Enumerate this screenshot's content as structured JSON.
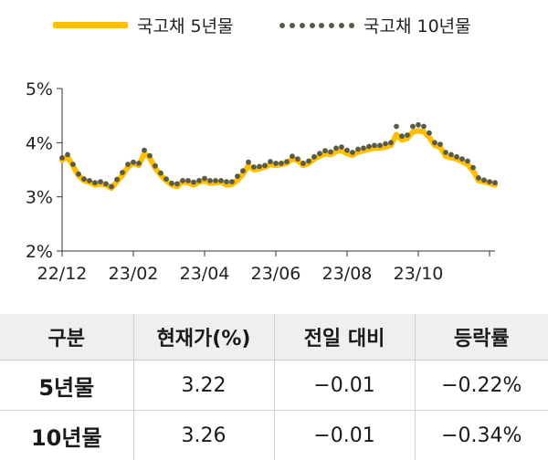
{
  "chart_data": {
    "type": "line",
    "x_ticks": [
      "22/12",
      "23/02",
      "23/04",
      "23/06",
      "23/08",
      "23/10"
    ],
    "y_ticks": [
      "2%",
      "3%",
      "4%",
      "5%"
    ],
    "ylim": [
      2,
      5
    ],
    "unit": "%",
    "legend": "top",
    "series": [
      {
        "name": "국고채 5년물",
        "style": "solid",
        "color": "#FFBF00",
        "values": [
          3.68,
          3.74,
          3.57,
          3.39,
          3.3,
          3.27,
          3.22,
          3.24,
          3.22,
          3.16,
          3.28,
          3.4,
          3.55,
          3.62,
          3.58,
          3.8,
          3.72,
          3.53,
          3.4,
          3.3,
          3.22,
          3.19,
          3.28,
          3.26,
          3.22,
          3.27,
          3.3,
          3.25,
          3.26,
          3.27,
          3.22,
          3.23,
          3.31,
          3.42,
          3.58,
          3.5,
          3.52,
          3.55,
          3.6,
          3.58,
          3.6,
          3.62,
          3.7,
          3.67,
          3.58,
          3.62,
          3.7,
          3.75,
          3.8,
          3.78,
          3.84,
          3.85,
          3.8,
          3.77,
          3.83,
          3.85,
          3.88,
          3.9,
          3.9,
          3.92,
          3.95,
          4.15,
          4.05,
          4.08,
          4.2,
          4.22,
          4.2,
          4.1,
          3.95,
          3.92,
          3.75,
          3.72,
          3.7,
          3.65,
          3.6,
          3.48,
          3.3,
          3.28,
          3.25,
          3.22
        ]
      },
      {
        "name": "국고채 10년물",
        "style": "dotted",
        "color": "#5a5a48",
        "values": [
          3.72,
          3.78,
          3.6,
          3.42,
          3.33,
          3.3,
          3.26,
          3.28,
          3.24,
          3.19,
          3.32,
          3.45,
          3.6,
          3.64,
          3.62,
          3.86,
          3.76,
          3.57,
          3.44,
          3.33,
          3.25,
          3.24,
          3.3,
          3.3,
          3.27,
          3.3,
          3.34,
          3.3,
          3.3,
          3.3,
          3.28,
          3.28,
          3.38,
          3.48,
          3.64,
          3.55,
          3.56,
          3.58,
          3.65,
          3.62,
          3.62,
          3.65,
          3.75,
          3.7,
          3.62,
          3.66,
          3.74,
          3.8,
          3.85,
          3.83,
          3.9,
          3.92,
          3.86,
          3.82,
          3.88,
          3.9,
          3.93,
          3.95,
          3.95,
          3.98,
          4.0,
          4.3,
          4.12,
          4.14,
          4.3,
          4.33,
          4.3,
          4.18,
          4.0,
          3.97,
          3.82,
          3.78,
          3.74,
          3.7,
          3.66,
          3.54,
          3.35,
          3.31,
          3.28,
          3.26
        ]
      }
    ]
  },
  "table": {
    "headers": [
      "구분",
      "현재가(%)",
      "전일 대비",
      "등락률"
    ],
    "rows": [
      [
        "5년물",
        "3.22",
        "−0.01",
        "−0.22%"
      ],
      [
        "10년물",
        "3.26",
        "−0.01",
        "−0.34%"
      ]
    ]
  }
}
